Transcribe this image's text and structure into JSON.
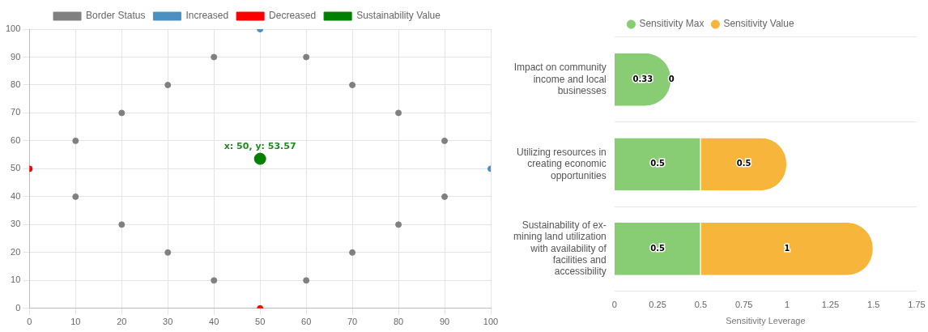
{
  "chart_data": [
    {
      "type": "scatter",
      "xlim": [
        0,
        100
      ],
      "ylim": [
        0,
        100
      ],
      "xticks": [
        0,
        10,
        20,
        30,
        40,
        50,
        60,
        70,
        80,
        90,
        100
      ],
      "yticks": [
        0,
        10,
        20,
        30,
        40,
        50,
        60,
        70,
        80,
        90,
        100
      ],
      "grid": true,
      "legend": "top",
      "marker": "circle",
      "annotations": [
        {
          "text": "x: 50, y: 53.57",
          "x": 50,
          "y": 53.57
        }
      ],
      "series": [
        {
          "name": "Border Status",
          "color": "#808080",
          "x": [
            10,
            20,
            30,
            40,
            60,
            70,
            80,
            90,
            90,
            80,
            70,
            60,
            40,
            30,
            20,
            10
          ],
          "values": [
            60,
            70,
            80,
            90,
            90,
            80,
            70,
            60,
            40,
            30,
            20,
            10,
            10,
            20,
            30,
            40
          ]
        },
        {
          "name": "Increased",
          "color": "#4b90c2",
          "x": [
            50,
            100
          ],
          "values": [
            100,
            50
          ]
        },
        {
          "name": "Decreased",
          "color": "#ff0000",
          "x": [
            0,
            50
          ],
          "values": [
            50,
            0
          ]
        },
        {
          "name": "Sustainability Value",
          "color": "#008000",
          "x": [
            50
          ],
          "values": [
            53.57
          ]
        }
      ]
    },
    {
      "type": "bar",
      "orientation": "horizontal",
      "stacked": true,
      "categories": [
        "Impact on community income and local businesses",
        "Utilizing resources in creating economic opportunities",
        "Sustainability of ex-mining land utilization with availability of facilities and accessibility"
      ],
      "xlim": [
        0,
        1.75
      ],
      "xticks": [
        0,
        0.25,
        0.5,
        0.75,
        1,
        1.25,
        1.5,
        1.75
      ],
      "xlabel": "Sensitivity Leverage",
      "grid": "y",
      "legend": "top",
      "data_labels": true,
      "series": [
        {
          "name": "Sensitivity Max",
          "color": "#88cc74",
          "values": [
            0.33,
            0.5,
            0.5
          ]
        },
        {
          "name": "Sensitivity Value",
          "color": "#f7b53c",
          "values": [
            0,
            0.5,
            1
          ]
        }
      ]
    }
  ]
}
